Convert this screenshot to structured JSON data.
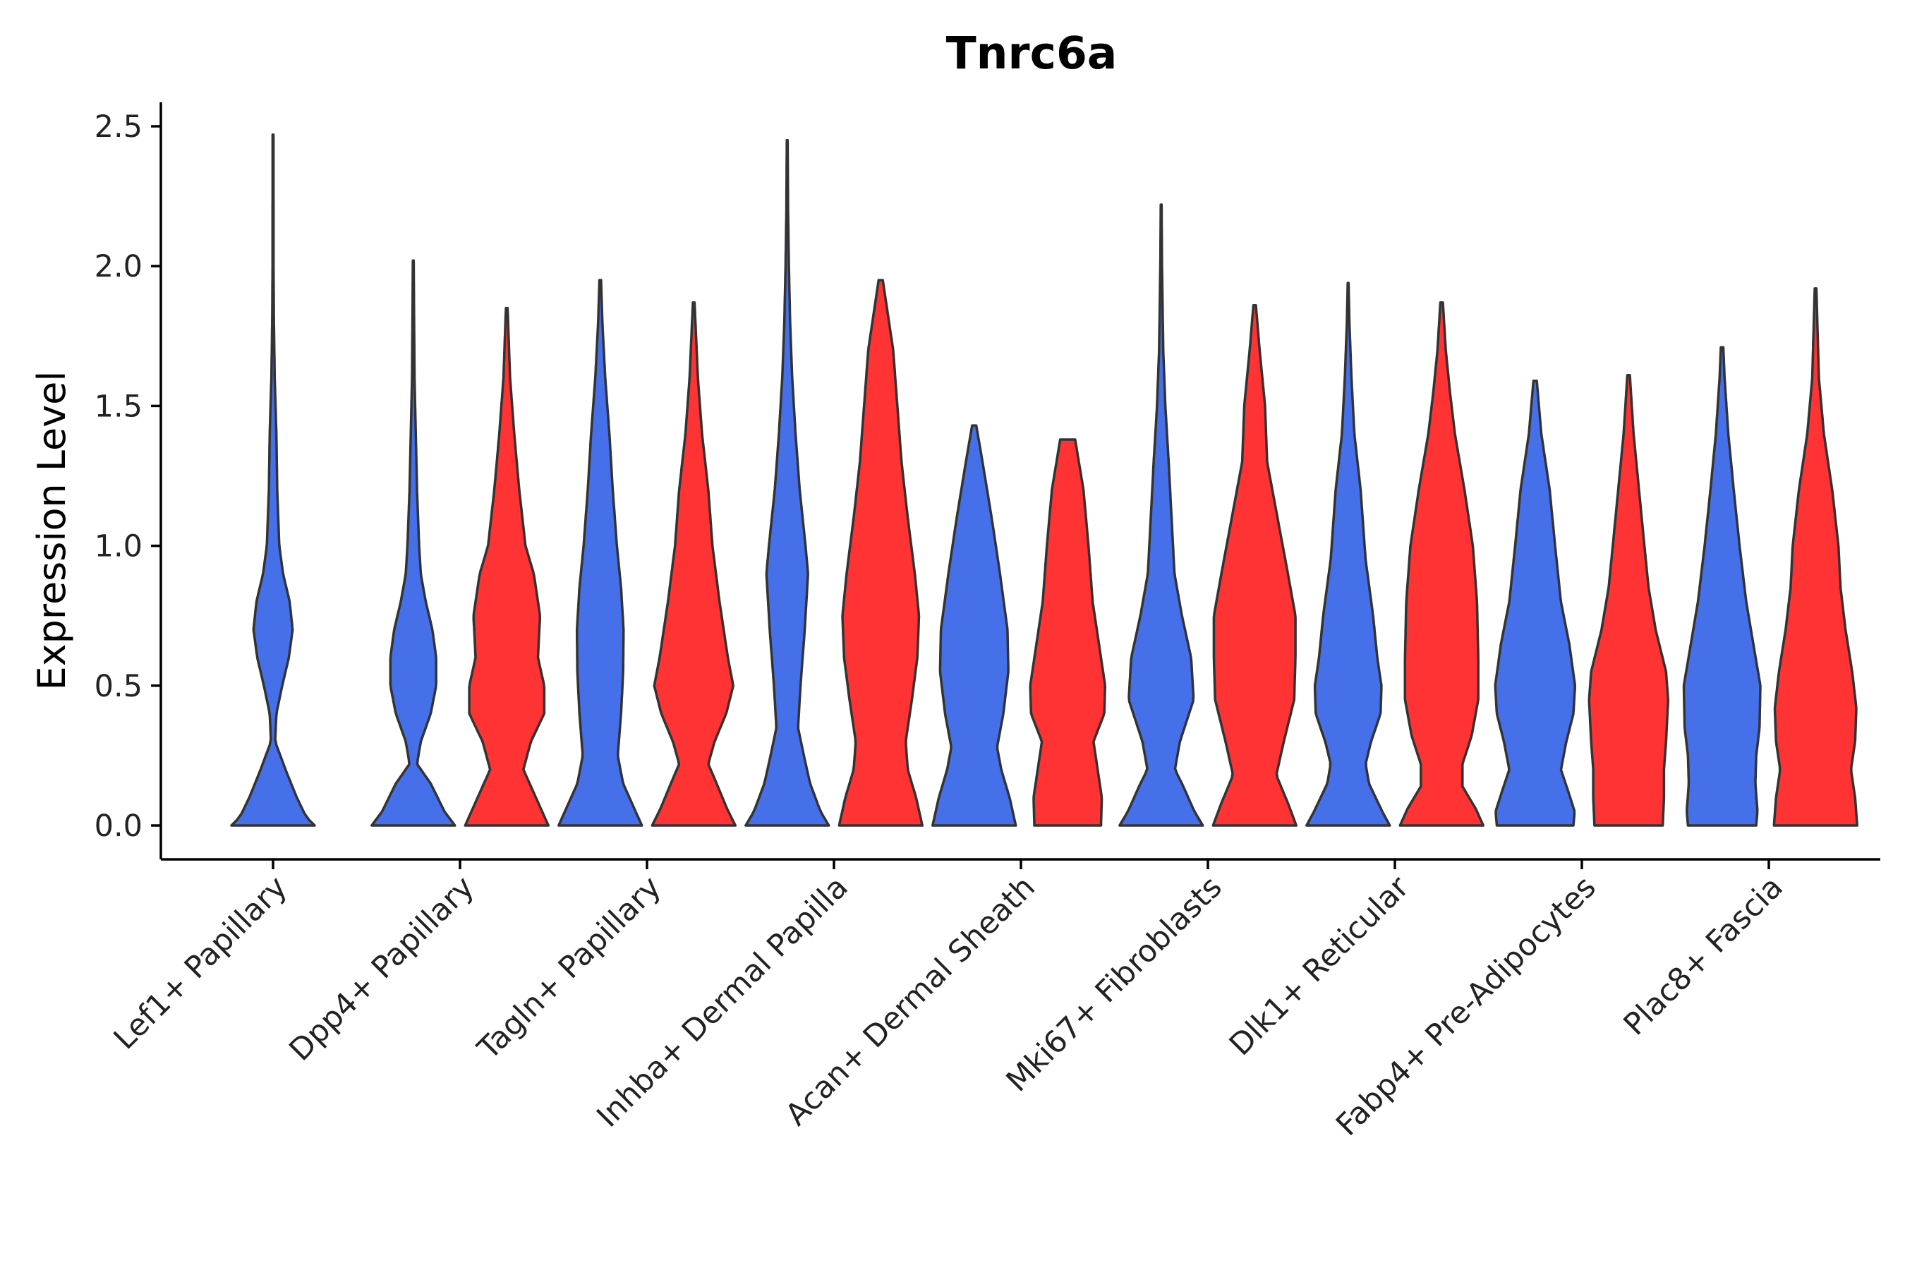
{
  "chart_data": {
    "type": "violin",
    "title": "Tnrc6a",
    "xlabel": "",
    "ylabel": "Expression Level",
    "ylim": [
      -0.12,
      2.6
    ],
    "yticks": [
      0.0,
      0.5,
      1.0,
      1.5,
      2.0,
      2.5
    ],
    "ytick_labels": [
      "0.0",
      "0.5",
      "1.0",
      "1.5",
      "2.0",
      "2.5"
    ],
    "categories": [
      "Lef1+ Papillary",
      "Dpp4+ Papillary",
      "Tagln+ Papillary",
      "Inhba+ Dermal Papilla",
      "Acan+ Dermal Sheath",
      "Mki67+ Fibroblasts",
      "Dlk1+ Reticular",
      "Fabp4+ Pre-Adipocytes",
      "Plac8+ Fascia"
    ],
    "colors": {
      "group1": "#4570EA",
      "group2": "#FF3333"
    },
    "violins": [
      {
        "category": "Lef1+ Papillary",
        "group": "group1",
        "offset": 0,
        "max": 2.47,
        "density": [
          [
            0,
            1.0
          ],
          [
            0.03,
            0.8
          ],
          [
            0.1,
            0.57
          ],
          [
            0.2,
            0.3
          ],
          [
            0.3,
            0.05
          ],
          [
            0.4,
            0.08
          ],
          [
            0.5,
            0.22
          ],
          [
            0.6,
            0.38
          ],
          [
            0.7,
            0.47
          ],
          [
            0.8,
            0.4
          ],
          [
            0.9,
            0.24
          ],
          [
            1.0,
            0.15
          ],
          [
            1.2,
            0.1
          ],
          [
            1.4,
            0.08
          ],
          [
            1.6,
            0.04
          ],
          [
            1.8,
            0.02
          ],
          [
            2.0,
            0.012
          ],
          [
            2.47,
            0.01
          ]
        ]
      },
      {
        "category": "Dpp4+ Papillary",
        "group": "group1",
        "offset": -0.25,
        "max": 2.02,
        "density": [
          [
            0,
            1.0
          ],
          [
            0.05,
            0.75
          ],
          [
            0.15,
            0.42
          ],
          [
            0.22,
            0.09
          ],
          [
            0.3,
            0.18
          ],
          [
            0.4,
            0.42
          ],
          [
            0.5,
            0.55
          ],
          [
            0.6,
            0.55
          ],
          [
            0.7,
            0.46
          ],
          [
            0.8,
            0.3
          ],
          [
            0.9,
            0.18
          ],
          [
            1.0,
            0.14
          ],
          [
            1.2,
            0.09
          ],
          [
            1.4,
            0.06
          ],
          [
            1.6,
            0.03
          ],
          [
            1.8,
            0.02
          ],
          [
            2.02,
            0.01
          ]
        ]
      },
      {
        "category": "Dpp4+ Papillary",
        "group": "group2",
        "offset": 0.25,
        "max": 1.85,
        "density": [
          [
            0,
            1.0
          ],
          [
            0.05,
            0.85
          ],
          [
            0.15,
            0.55
          ],
          [
            0.2,
            0.4
          ],
          [
            0.3,
            0.58
          ],
          [
            0.4,
            0.9
          ],
          [
            0.5,
            0.9
          ],
          [
            0.6,
            0.75
          ],
          [
            0.75,
            0.8
          ],
          [
            0.9,
            0.65
          ],
          [
            1.0,
            0.45
          ],
          [
            1.2,
            0.3
          ],
          [
            1.4,
            0.18
          ],
          [
            1.6,
            0.08
          ],
          [
            1.85,
            0.02
          ]
        ]
      },
      {
        "category": "Tagln+ Papillary",
        "group": "group1",
        "offset": -0.25,
        "max": 1.95,
        "density": [
          [
            0,
            1.0
          ],
          [
            0.05,
            0.85
          ],
          [
            0.15,
            0.55
          ],
          [
            0.25,
            0.42
          ],
          [
            0.4,
            0.5
          ],
          [
            0.55,
            0.55
          ],
          [
            0.7,
            0.56
          ],
          [
            0.85,
            0.5
          ],
          [
            1.0,
            0.4
          ],
          [
            1.2,
            0.3
          ],
          [
            1.4,
            0.22
          ],
          [
            1.6,
            0.12
          ],
          [
            1.8,
            0.05
          ],
          [
            1.95,
            0.02
          ]
        ]
      },
      {
        "category": "Tagln+ Papillary",
        "group": "group2",
        "offset": 0.25,
        "max": 1.87,
        "density": [
          [
            0,
            1.0
          ],
          [
            0.06,
            0.8
          ],
          [
            0.15,
            0.55
          ],
          [
            0.22,
            0.35
          ],
          [
            0.3,
            0.5
          ],
          [
            0.4,
            0.78
          ],
          [
            0.5,
            0.95
          ],
          [
            0.6,
            0.82
          ],
          [
            0.8,
            0.62
          ],
          [
            1.0,
            0.45
          ],
          [
            1.2,
            0.35
          ],
          [
            1.4,
            0.2
          ],
          [
            1.6,
            0.1
          ],
          [
            1.87,
            0.02
          ]
        ]
      },
      {
        "category": "Inhba+ Dermal Papilla",
        "group": "group1",
        "offset": -0.25,
        "max": 2.45,
        "density": [
          [
            0,
            1.0
          ],
          [
            0.05,
            0.8
          ],
          [
            0.15,
            0.55
          ],
          [
            0.25,
            0.4
          ],
          [
            0.35,
            0.26
          ],
          [
            0.5,
            0.32
          ],
          [
            0.7,
            0.42
          ],
          [
            0.9,
            0.5
          ],
          [
            1.0,
            0.44
          ],
          [
            1.2,
            0.3
          ],
          [
            1.4,
            0.2
          ],
          [
            1.6,
            0.12
          ],
          [
            1.8,
            0.07
          ],
          [
            2.0,
            0.04
          ],
          [
            2.2,
            0.02
          ],
          [
            2.45,
            0.01
          ]
        ]
      },
      {
        "category": "Inhba+ Dermal Papilla",
        "group": "group2",
        "offset": 0.25,
        "max": 1.95,
        "density": [
          [
            0,
            1.0
          ],
          [
            0.1,
            0.85
          ],
          [
            0.2,
            0.65
          ],
          [
            0.3,
            0.6
          ],
          [
            0.45,
            0.75
          ],
          [
            0.6,
            0.88
          ],
          [
            0.75,
            0.92
          ],
          [
            0.9,
            0.82
          ],
          [
            1.1,
            0.65
          ],
          [
            1.3,
            0.5
          ],
          [
            1.5,
            0.4
          ],
          [
            1.7,
            0.3
          ],
          [
            1.9,
            0.1
          ],
          [
            1.95,
            0.05
          ]
        ]
      },
      {
        "category": "Acan+ Dermal Sheath",
        "group": "group1",
        "offset": -0.25,
        "max": 1.43,
        "density": [
          [
            0,
            1.0
          ],
          [
            0.1,
            0.85
          ],
          [
            0.2,
            0.65
          ],
          [
            0.28,
            0.55
          ],
          [
            0.4,
            0.7
          ],
          [
            0.55,
            0.82
          ],
          [
            0.7,
            0.8
          ],
          [
            0.9,
            0.62
          ],
          [
            1.1,
            0.42
          ],
          [
            1.3,
            0.2
          ],
          [
            1.43,
            0.05
          ]
        ]
      },
      {
        "category": "Acan+ Dermal Sheath",
        "group": "group2",
        "offset": 0.25,
        "max": 1.38,
        "density": [
          [
            0,
            0.8
          ],
          [
            0.1,
            0.82
          ],
          [
            0.2,
            0.72
          ],
          [
            0.3,
            0.62
          ],
          [
            0.4,
            0.88
          ],
          [
            0.5,
            0.9
          ],
          [
            0.65,
            0.75
          ],
          [
            0.8,
            0.6
          ],
          [
            1.0,
            0.5
          ],
          [
            1.2,
            0.38
          ],
          [
            1.38,
            0.18
          ]
        ]
      },
      {
        "category": "Mki67+ Fibroblasts",
        "group": "group1",
        "offset": -0.25,
        "max": 2.22,
        "density": [
          [
            0,
            1.0
          ],
          [
            0.05,
            0.8
          ],
          [
            0.15,
            0.5
          ],
          [
            0.2,
            0.33
          ],
          [
            0.3,
            0.45
          ],
          [
            0.45,
            0.78
          ],
          [
            0.6,
            0.72
          ],
          [
            0.75,
            0.5
          ],
          [
            0.9,
            0.32
          ],
          [
            1.1,
            0.25
          ],
          [
            1.3,
            0.18
          ],
          [
            1.5,
            0.1
          ],
          [
            1.7,
            0.05
          ],
          [
            2.0,
            0.02
          ],
          [
            2.22,
            0.01
          ]
        ]
      },
      {
        "category": "Mki67+ Fibroblasts",
        "group": "group2",
        "offset": 0.25,
        "max": 1.86,
        "density": [
          [
            0,
            1.0
          ],
          [
            0.08,
            0.8
          ],
          [
            0.18,
            0.52
          ],
          [
            0.3,
            0.7
          ],
          [
            0.45,
            0.95
          ],
          [
            0.6,
            0.98
          ],
          [
            0.75,
            0.98
          ],
          [
            0.9,
            0.8
          ],
          [
            1.1,
            0.55
          ],
          [
            1.3,
            0.3
          ],
          [
            1.5,
            0.25
          ],
          [
            1.7,
            0.12
          ],
          [
            1.86,
            0.03
          ]
        ]
      },
      {
        "category": "Dlk1+ Reticular",
        "group": "group1",
        "offset": -0.25,
        "max": 1.94,
        "density": [
          [
            0,
            1.0
          ],
          [
            0.05,
            0.82
          ],
          [
            0.15,
            0.5
          ],
          [
            0.22,
            0.42
          ],
          [
            0.3,
            0.55
          ],
          [
            0.4,
            0.78
          ],
          [
            0.5,
            0.8
          ],
          [
            0.6,
            0.7
          ],
          [
            0.75,
            0.6
          ],
          [
            0.95,
            0.42
          ],
          [
            1.2,
            0.3
          ],
          [
            1.4,
            0.15
          ],
          [
            1.6,
            0.08
          ],
          [
            1.8,
            0.03
          ],
          [
            1.94,
            0.01
          ]
        ]
      },
      {
        "category": "Dlk1+ Reticular",
        "group": "group2",
        "offset": 0.25,
        "max": 1.87,
        "density": [
          [
            0,
            1.0
          ],
          [
            0.06,
            0.82
          ],
          [
            0.14,
            0.5
          ],
          [
            0.22,
            0.5
          ],
          [
            0.32,
            0.72
          ],
          [
            0.45,
            0.88
          ],
          [
            0.6,
            0.88
          ],
          [
            0.8,
            0.85
          ],
          [
            1.0,
            0.75
          ],
          [
            1.2,
            0.55
          ],
          [
            1.4,
            0.32
          ],
          [
            1.55,
            0.2
          ],
          [
            1.7,
            0.1
          ],
          [
            1.87,
            0.03
          ]
        ]
      },
      {
        "category": "Fabp4+ Pre-Adipocytes",
        "group": "group1",
        "offset": -0.25,
        "max": 1.59,
        "density": [
          [
            0,
            0.92
          ],
          [
            0.05,
            0.95
          ],
          [
            0.12,
            0.8
          ],
          [
            0.2,
            0.62
          ],
          [
            0.3,
            0.75
          ],
          [
            0.4,
            0.92
          ],
          [
            0.5,
            0.96
          ],
          [
            0.65,
            0.82
          ],
          [
            0.8,
            0.62
          ],
          [
            1.0,
            0.48
          ],
          [
            1.2,
            0.35
          ],
          [
            1.4,
            0.15
          ],
          [
            1.59,
            0.04
          ]
        ]
      },
      {
        "category": "Fabp4+ Pre-Adipocytes",
        "group": "group2",
        "offset": 0.25,
        "max": 1.61,
        "density": [
          [
            0,
            0.82
          ],
          [
            0.1,
            0.85
          ],
          [
            0.2,
            0.85
          ],
          [
            0.3,
            0.9
          ],
          [
            0.45,
            0.95
          ],
          [
            0.55,
            0.9
          ],
          [
            0.7,
            0.65
          ],
          [
            0.85,
            0.48
          ],
          [
            1.0,
            0.38
          ],
          [
            1.2,
            0.25
          ],
          [
            1.4,
            0.12
          ],
          [
            1.61,
            0.03
          ]
        ]
      },
      {
        "category": "Plac8+ Fascia",
        "group": "group1",
        "offset": -0.25,
        "max": 1.71,
        "density": [
          [
            0,
            0.82
          ],
          [
            0.05,
            0.85
          ],
          [
            0.15,
            0.8
          ],
          [
            0.25,
            0.82
          ],
          [
            0.35,
            0.9
          ],
          [
            0.5,
            0.92
          ],
          [
            0.65,
            0.75
          ],
          [
            0.8,
            0.58
          ],
          [
            1.0,
            0.42
          ],
          [
            1.2,
            0.28
          ],
          [
            1.4,
            0.15
          ],
          [
            1.6,
            0.06
          ],
          [
            1.71,
            0.03
          ]
        ]
      },
      {
        "category": "Plac8+ Fascia",
        "group": "group2",
        "offset": 0.25,
        "max": 1.92,
        "density": [
          [
            0,
            1.0
          ],
          [
            0.1,
            0.95
          ],
          [
            0.2,
            0.85
          ],
          [
            0.3,
            0.95
          ],
          [
            0.42,
            0.98
          ],
          [
            0.55,
            0.88
          ],
          [
            0.7,
            0.72
          ],
          [
            0.85,
            0.6
          ],
          [
            1.0,
            0.55
          ],
          [
            1.2,
            0.4
          ],
          [
            1.4,
            0.2
          ],
          [
            1.6,
            0.08
          ],
          [
            1.92,
            0.02
          ]
        ]
      }
    ]
  }
}
